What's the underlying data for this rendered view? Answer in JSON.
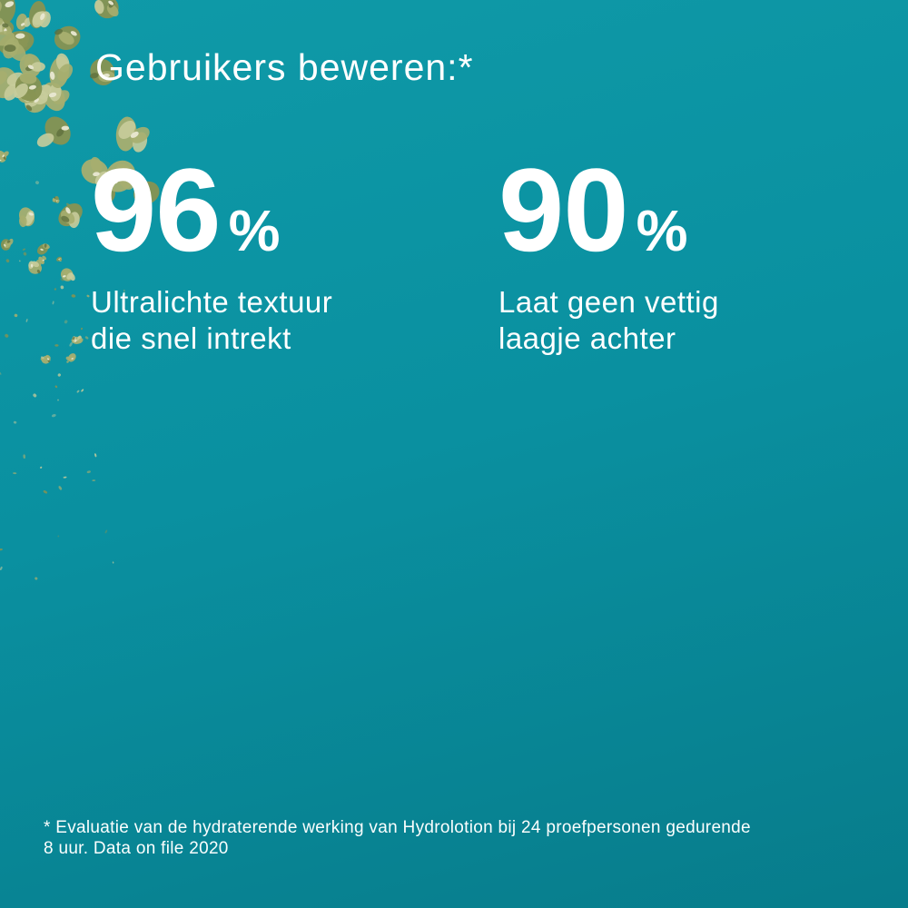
{
  "page": {
    "background_top_color": "#0f9aa8",
    "background_mid_color": "#0a90a0",
    "background_bottom_color": "#077c8b",
    "text_color": "#ffffff"
  },
  "header": {
    "title": "Gebruikers beweren:*"
  },
  "stats": [
    {
      "value": "96",
      "unit": "%",
      "label_line1": "Ultralichte textuur",
      "label_line2": "die snel intrekt"
    },
    {
      "value": "90",
      "unit": "%",
      "label_line1": "Laat geen vettig",
      "label_line2": "laagje achter"
    }
  ],
  "footnote": {
    "line1": "* Evaluatie van de hydraterende werking van Hydrolotion bij 24 proefpersonen gedurende",
    "line2": "8 uur. Data on file 2020"
  },
  "decoration": {
    "description": "green botanical flakes scattered in the top-left corner fading down the left edge",
    "colors": {
      "dark": "#5e6e3c",
      "base": "#86935２",
      "base_fix": "#869352",
      "mid": "#a6ae6f",
      "light": "#c8cc9b",
      "highlight": "#e9e8d2"
    }
  }
}
